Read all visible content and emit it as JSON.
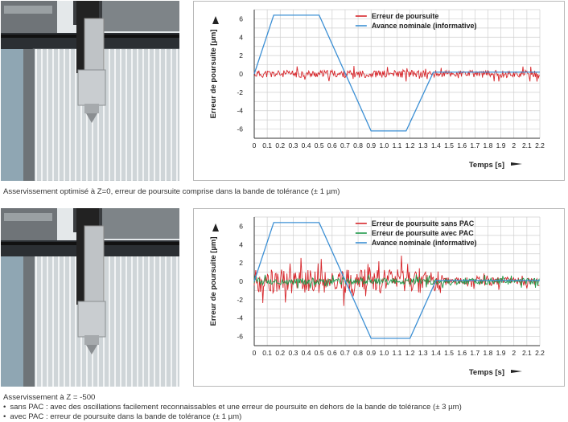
{
  "figures": [
    {
      "caption": "Asservissement optimisé à Z=0, erreur de poursuite comprise dans la bande de tolérance (± 1 µm)"
    },
    {
      "caption": "Asservissement à Z = -500",
      "bullets": [
        "sans PAC : avec des oscillations facilement reconnaissables et une erreur de poursuite en dehors de la bande de tolérance (± 3 µm)",
        "avec PAC : erreur de poursuite dans la bande de tolérance (± 1 µm)"
      ]
    }
  ],
  "chart_data": [
    {
      "type": "line",
      "xlabel": "Temps [s]",
      "ylabel": "Erreur de poursuite [µm]",
      "xlim": [
        0,
        2.2
      ],
      "ylim": [
        -7,
        7
      ],
      "x_ticks": [
        "0",
        "0.1",
        "0.2",
        "0.3",
        "0.4",
        "0.5",
        "0.6",
        "0.7",
        "0.8",
        "0.9",
        "1.0",
        "1.1",
        "1.2",
        "1.3",
        "1.4",
        "1.5",
        "1.6",
        "1.7",
        "1.8",
        "1.9",
        "2",
        "2.1",
        "2.2"
      ],
      "y_ticks": [
        "6",
        "4",
        "2",
        "0",
        "-2",
        "-4",
        "-6"
      ],
      "grid": true,
      "legend_position": "top-right",
      "series": [
        {
          "name": "Erreur de poursuite",
          "color": "#d7262b",
          "noise_amplitude": 0.8,
          "x": [
            0,
            2.2
          ],
          "y": [
            0,
            0
          ]
        },
        {
          "name": "Avance nominale (informative)",
          "color": "#3b8fd4",
          "x": [
            0,
            0.15,
            0.5,
            0.9,
            1.17,
            1.38,
            2.2
          ],
          "y": [
            0,
            6.4,
            6.4,
            -6.2,
            -6.2,
            0.2,
            0.2
          ]
        }
      ]
    },
    {
      "type": "line",
      "xlabel": "Temps [s]",
      "ylabel": "Erreur de poursuite [µm]",
      "xlim": [
        0,
        2.2
      ],
      "ylim": [
        -7,
        7
      ],
      "x_ticks": [
        "0",
        "0.1",
        "0.2",
        "0.3",
        "0.4",
        "0.5",
        "0.6",
        "0.7",
        "0.8",
        "0.9",
        "1.0",
        "1.1",
        "1.2",
        "1.3",
        "1.4",
        "1.5",
        "1.6",
        "1.7",
        "1.8",
        "1.9",
        "2",
        "2.1",
        "2.2"
      ],
      "y_ticks": [
        "6",
        "4",
        "2",
        "0",
        "-2",
        "-4",
        "-6"
      ],
      "grid": true,
      "legend_position": "top-right",
      "series": [
        {
          "name": "Erreur de poursuite sans PAC",
          "color": "#d7262b",
          "noise_amplitude": 2.6,
          "x": [
            0,
            2.2
          ],
          "y": [
            0,
            0
          ]
        },
        {
          "name": "Erreur de poursuite avec PAC",
          "color": "#1f9a4a",
          "noise_amplitude": 0.7,
          "x": [
            0,
            2.2
          ],
          "y": [
            0,
            0
          ]
        },
        {
          "name": "Avance nominale (informative)",
          "color": "#3b8fd4",
          "x": [
            0,
            0.15,
            0.5,
            0.9,
            1.2,
            1.4,
            2.2
          ],
          "y": [
            0,
            6.4,
            6.4,
            -6.2,
            -6.2,
            0.1,
            0.1
          ]
        }
      ]
    }
  ]
}
